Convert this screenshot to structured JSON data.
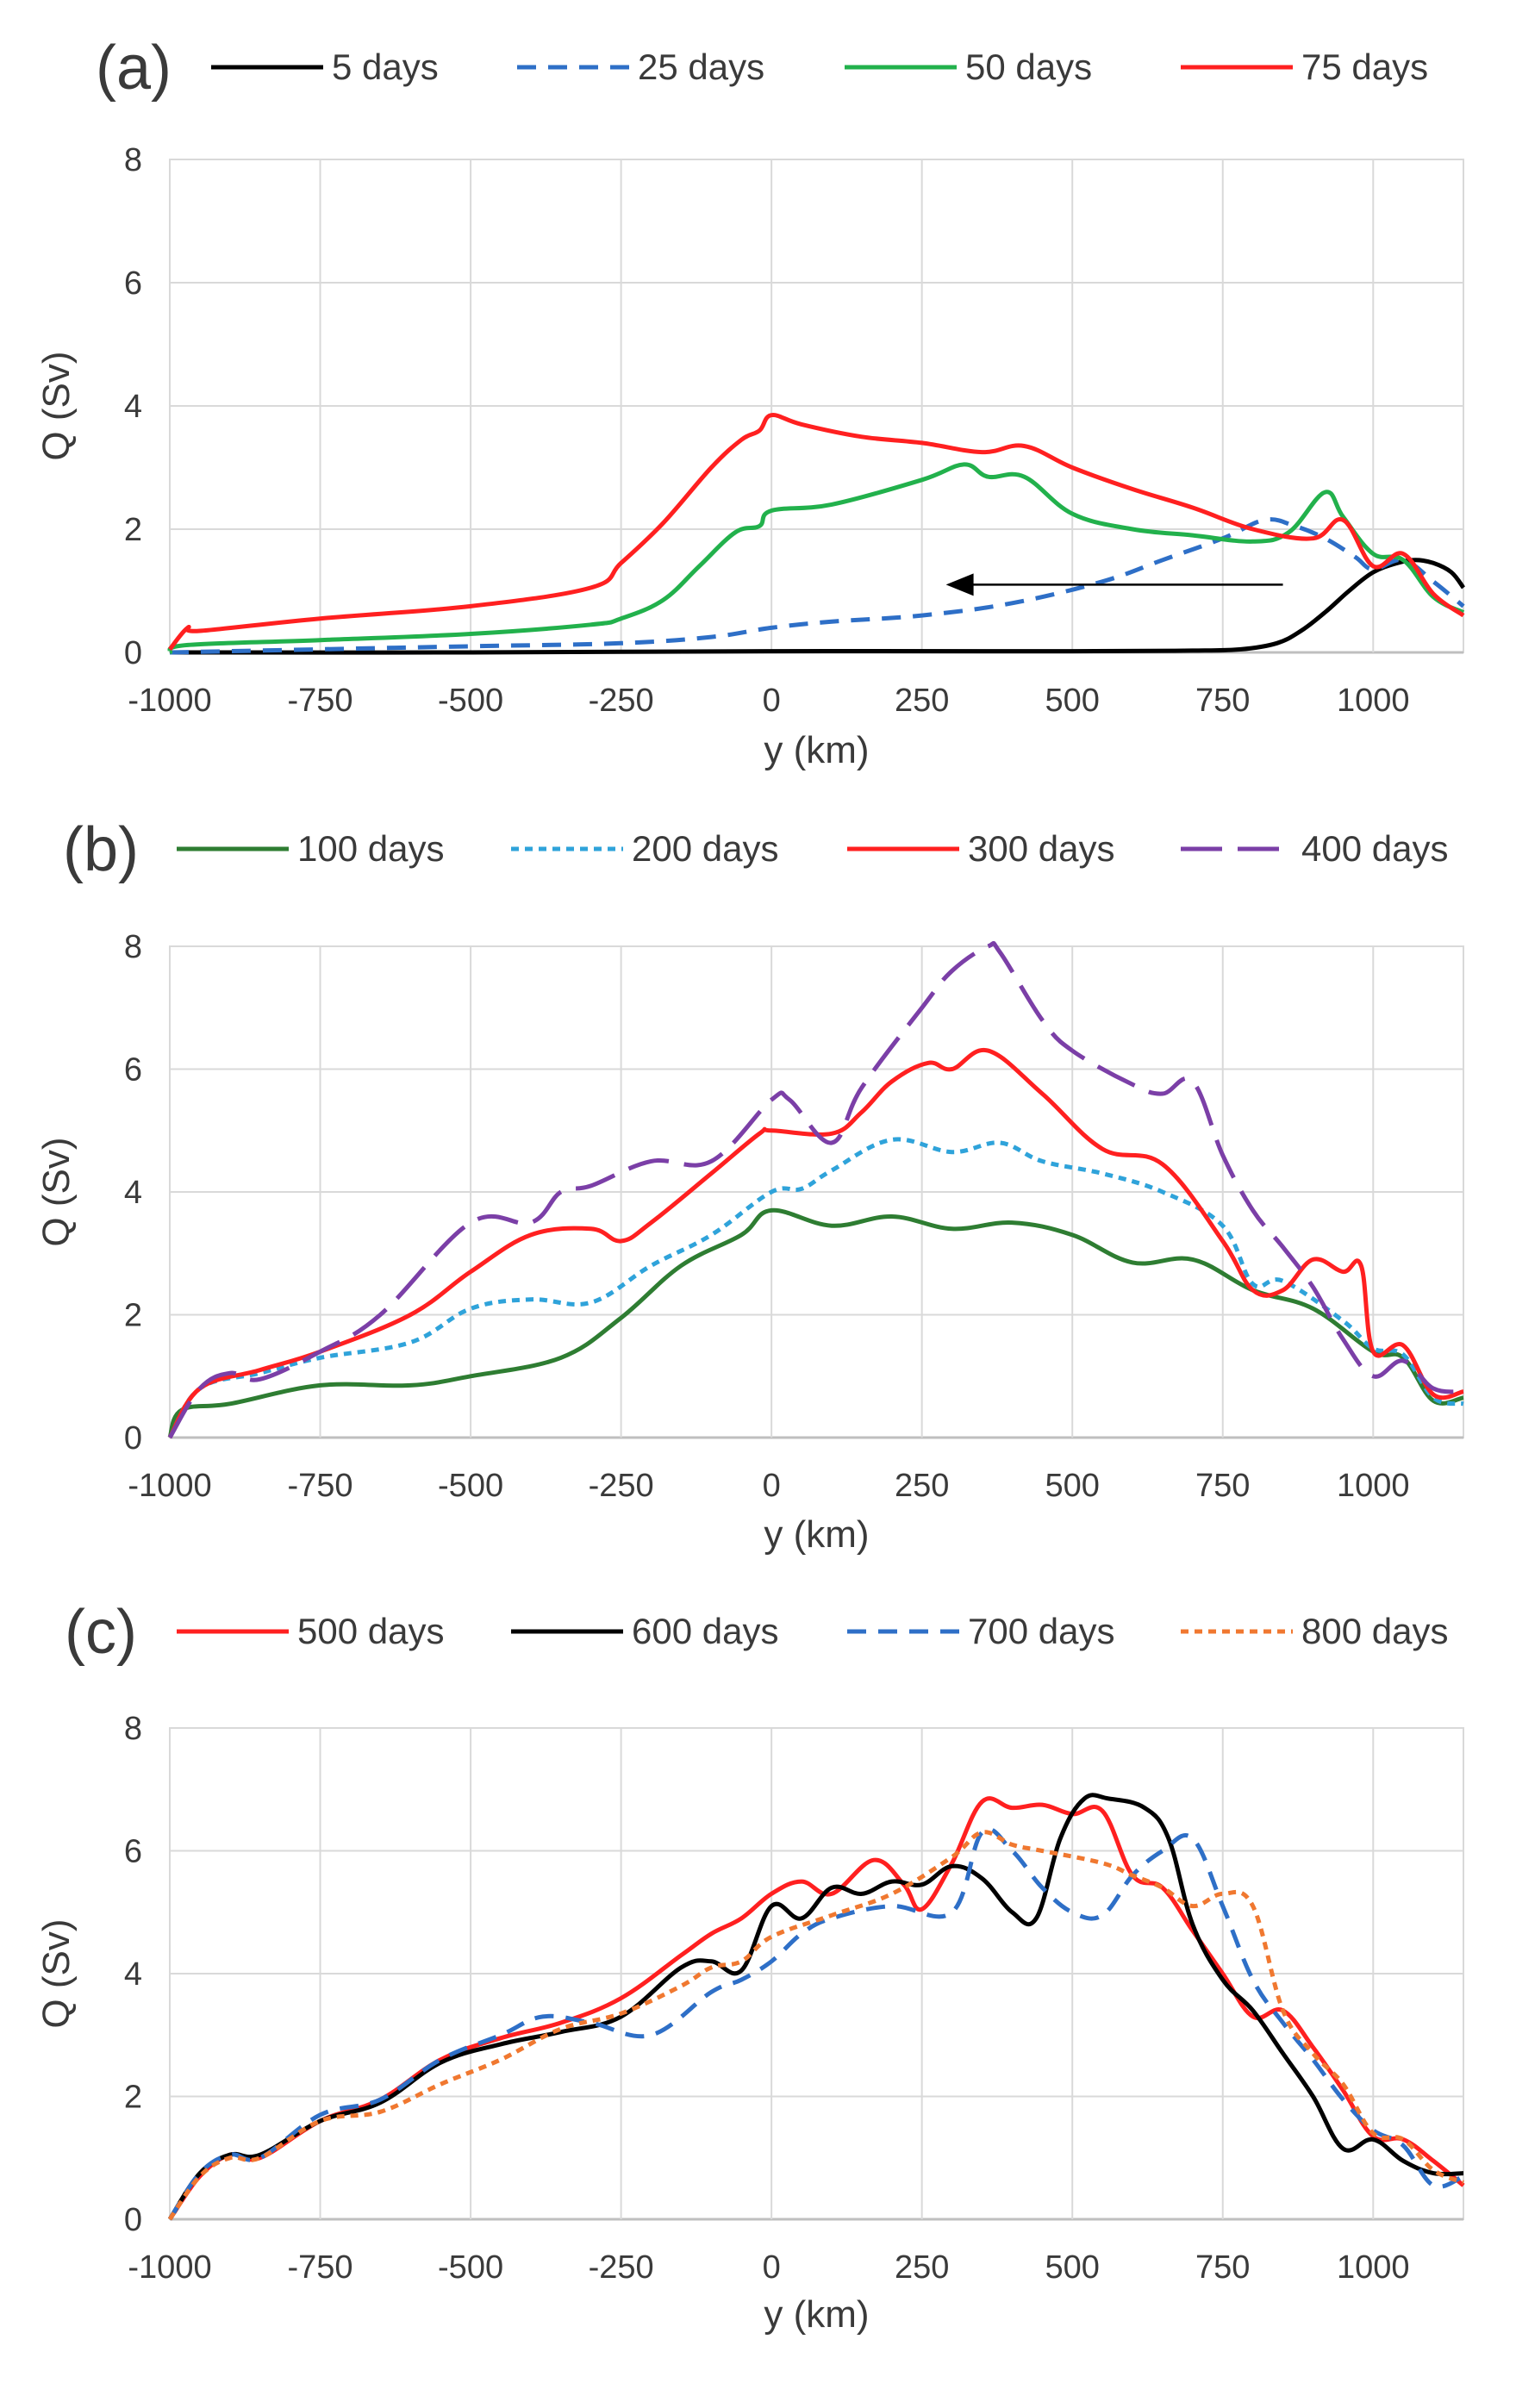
{
  "panels": [
    {
      "label": "(a)",
      "legend": [
        {
          "name": "5 days",
          "color": "#000000",
          "dash": "solid"
        },
        {
          "name": "25 days",
          "color": "#2E6FC7",
          "dash": "dashed"
        },
        {
          "name": "50 days",
          "color": "#22B14C",
          "dash": "solid"
        },
        {
          "name": "75 days",
          "color": "#FF2020",
          "dash": "solid"
        }
      ]
    },
    {
      "label": "(b)",
      "legend": [
        {
          "name": "100 days",
          "color": "#2E7D32",
          "dash": "solid"
        },
        {
          "name": "200 days",
          "color": "#2FA3DA",
          "dash": "dotted"
        },
        {
          "name": "300 days",
          "color": "#FF2020",
          "dash": "solid"
        },
        {
          "name": "400 days",
          "color": "#7B3FA7",
          "dash": "longdash"
        }
      ]
    },
    {
      "label": "(c)",
      "legend": [
        {
          "name": "500 days",
          "color": "#FF2020",
          "dash": "solid"
        },
        {
          "name": "600 days",
          "color": "#000000",
          "dash": "solid"
        },
        {
          "name": "700 days",
          "color": "#2E6FC7",
          "dash": "dashed"
        },
        {
          "name": "800 days",
          "color": "#F07830",
          "dash": "dotted"
        }
      ]
    }
  ],
  "chart_data": [
    {
      "type": "line",
      "panel": "(a)",
      "xlabel": "y (km)",
      "ylabel": "Q (Sv)",
      "xlim": [
        -1000,
        1150
      ],
      "ylim": [
        0,
        8
      ],
      "xticks": [
        -1000,
        -750,
        -500,
        -250,
        0,
        250,
        500,
        750,
        1000
      ],
      "yticks": [
        0,
        2,
        4,
        6,
        8
      ],
      "grid": true,
      "legend_position": "top",
      "annotation": "arrow pointing left from y≈850 km to y≈290 km at Q≈1.1",
      "arrow": {
        "x_from": 850,
        "x_to": 290,
        "y": 1.1
      },
      "series": [
        {
          "name": "5 days",
          "color": "#000000",
          "dash": "solid",
          "x": [
            -1000,
            -500,
            0,
            500,
            700,
            780,
            840,
            880,
            920,
            960,
            1000,
            1040,
            1070,
            1100,
            1130,
            1150
          ],
          "y": [
            0.0,
            0.0,
            0.02,
            0.02,
            0.03,
            0.05,
            0.15,
            0.35,
            0.65,
            1.0,
            1.3,
            1.45,
            1.5,
            1.45,
            1.3,
            1.05
          ]
        },
        {
          "name": "25 days",
          "color": "#2E6FC7",
          "dash": "dashed",
          "x": [
            -1000,
            -750,
            -500,
            -250,
            -100,
            0,
            100,
            250,
            400,
            550,
            650,
            750,
            820,
            870,
            920,
            970,
            1000,
            1050,
            1100,
            1150
          ],
          "y": [
            0.0,
            0.05,
            0.1,
            0.15,
            0.25,
            0.4,
            0.5,
            0.6,
            0.8,
            1.15,
            1.5,
            1.85,
            2.15,
            2.05,
            1.85,
            1.55,
            1.35,
            1.5,
            1.15,
            0.75
          ]
        },
        {
          "name": "50 days",
          "color": "#22B14C",
          "dash": "solid",
          "x": [
            -1000,
            -970,
            -750,
            -500,
            -300,
            -250,
            -180,
            -120,
            -60,
            -20,
            0,
            100,
            250,
            320,
            360,
            420,
            500,
            600,
            700,
            800,
            860,
            920,
            950,
            1000,
            1050,
            1100,
            1150
          ],
          "y": [
            0.0,
            0.12,
            0.2,
            0.3,
            0.45,
            0.55,
            0.85,
            1.4,
            1.95,
            2.05,
            2.3,
            2.4,
            2.8,
            3.05,
            2.85,
            2.85,
            2.25,
            2.0,
            1.9,
            1.8,
            1.95,
            2.6,
            2.2,
            1.6,
            1.5,
            0.9,
            0.65
          ]
        },
        {
          "name": "75 days",
          "color": "#FF2020",
          "dash": "solid",
          "x": [
            -1000,
            -970,
            -950,
            -750,
            -500,
            -300,
            -250,
            -180,
            -100,
            -50,
            -20,
            0,
            50,
            150,
            250,
            350,
            420,
            500,
            600,
            700,
            800,
            900,
            950,
            1000,
            1050,
            1100,
            1150
          ],
          "y": [
            0.05,
            0.4,
            0.35,
            0.55,
            0.75,
            1.05,
            1.45,
            2.1,
            3.0,
            3.45,
            3.6,
            3.85,
            3.7,
            3.5,
            3.4,
            3.25,
            3.35,
            3.0,
            2.65,
            2.35,
            2.0,
            1.85,
            2.15,
            1.4,
            1.6,
            0.95,
            0.6
          ]
        }
      ]
    },
    {
      "type": "line",
      "panel": "(b)",
      "xlabel": "y (km)",
      "ylabel": "Q (Sv)",
      "xlim": [
        -1000,
        1150
      ],
      "ylim": [
        0,
        8
      ],
      "xticks": [
        -1000,
        -750,
        -500,
        -250,
        0,
        250,
        500,
        750,
        1000
      ],
      "yticks": [
        0,
        2,
        4,
        6,
        8
      ],
      "grid": true,
      "legend_position": "top",
      "series": [
        {
          "name": "100 days",
          "color": "#2E7D32",
          "dash": "solid",
          "x": [
            -1000,
            -980,
            -900,
            -750,
            -600,
            -500,
            -350,
            -250,
            -150,
            -50,
            0,
            100,
            200,
            300,
            400,
            500,
            600,
            700,
            800,
            900,
            1000,
            1050,
            1100,
            1150
          ],
          "y": [
            0.0,
            0.45,
            0.55,
            0.85,
            0.85,
            1.0,
            1.3,
            1.95,
            2.8,
            3.3,
            3.7,
            3.45,
            3.6,
            3.4,
            3.5,
            3.3,
            2.85,
            2.9,
            2.4,
            2.1,
            1.4,
            1.3,
            0.6,
            0.65
          ]
        },
        {
          "name": "200 days",
          "color": "#2FA3DA",
          "dash": "dotted",
          "x": [
            -1000,
            -950,
            -850,
            -750,
            -600,
            -500,
            -400,
            -300,
            -200,
            -100,
            0,
            50,
            100,
            200,
            300,
            380,
            450,
            550,
            650,
            750,
            800,
            850,
            950,
            1000,
            1050,
            1100,
            1150
          ],
          "y": [
            0.0,
            0.8,
            1.05,
            1.3,
            1.55,
            2.1,
            2.25,
            2.2,
            2.8,
            3.3,
            4.0,
            4.05,
            4.35,
            4.85,
            4.65,
            4.8,
            4.5,
            4.3,
            4.0,
            3.45,
            2.5,
            2.55,
            1.9,
            1.45,
            1.35,
            0.65,
            0.55
          ]
        },
        {
          "name": "300 days",
          "color": "#FF2020",
          "dash": "solid",
          "x": [
            -1000,
            -950,
            -850,
            -750,
            -600,
            -500,
            -400,
            -300,
            -250,
            -200,
            -100,
            -20,
            0,
            100,
            150,
            200,
            260,
            300,
            360,
            450,
            550,
            650,
            750,
            800,
            850,
            900,
            950,
            980,
            1000,
            1050,
            1100,
            1150
          ],
          "y": [
            0.0,
            0.8,
            1.1,
            1.4,
            2.0,
            2.7,
            3.3,
            3.4,
            3.2,
            3.5,
            4.3,
            4.95,
            5.0,
            4.95,
            5.3,
            5.8,
            6.1,
            6.0,
            6.3,
            5.6,
            4.7,
            4.45,
            3.2,
            2.4,
            2.4,
            2.9,
            2.7,
            2.8,
            1.4,
            1.5,
            0.7,
            0.75
          ]
        },
        {
          "name": "400 days",
          "color": "#7B3FA7",
          "dash": "longdash",
          "x": [
            -1000,
            -950,
            -900,
            -850,
            -750,
            -650,
            -500,
            -400,
            -350,
            -300,
            -200,
            -100,
            0,
            30,
            100,
            150,
            250,
            300,
            360,
            380,
            450,
            500,
            600,
            650,
            700,
            750,
            800,
            850,
            900,
            950,
            1000,
            1050,
            1100,
            1150
          ],
          "y": [
            0.0,
            0.8,
            1.05,
            0.95,
            1.4,
            2.0,
            3.5,
            3.5,
            4.0,
            4.1,
            4.5,
            4.5,
            5.5,
            5.5,
            4.8,
            5.7,
            7.0,
            7.6,
            8.0,
            7.9,
            6.8,
            6.3,
            5.75,
            5.6,
            5.8,
            4.6,
            3.7,
            3.1,
            2.45,
            1.6,
            1.0,
            1.25,
            0.8,
            0.75
          ]
        }
      ]
    },
    {
      "type": "line",
      "panel": "(c)",
      "xlabel": "y (km)",
      "ylabel": "Q (Sv)",
      "xlim": [
        -1000,
        1150
      ],
      "ylim": [
        0,
        8
      ],
      "xticks": [
        -1000,
        -750,
        -500,
        -250,
        0,
        250,
        500,
        750,
        1000
      ],
      "yticks": [
        0,
        2,
        4,
        6,
        8
      ],
      "grid": true,
      "legend_position": "top",
      "series": [
        {
          "name": "500 days",
          "color": "#FF2020",
          "dash": "solid",
          "x": [
            -1000,
            -950,
            -900,
            -850,
            -750,
            -650,
            -550,
            -450,
            -350,
            -250,
            -150,
            -100,
            -50,
            0,
            50,
            100,
            170,
            220,
            250,
            300,
            350,
            400,
            450,
            500,
            550,
            600,
            650,
            700,
            750,
            800,
            850,
            900,
            950,
            1000,
            1050,
            1100,
            1150
          ],
          "y": [
            0.0,
            0.7,
            1.05,
            1.0,
            1.6,
            1.95,
            2.6,
            2.95,
            3.2,
            3.6,
            4.3,
            4.65,
            4.9,
            5.3,
            5.5,
            5.3,
            5.85,
            5.45,
            5.05,
            5.8,
            6.8,
            6.7,
            6.75,
            6.6,
            6.65,
            5.6,
            5.4,
            4.7,
            4.0,
            3.3,
            3.4,
            2.8,
            2.1,
            1.35,
            1.3,
            0.95,
            0.55
          ]
        },
        {
          "name": "600 days",
          "color": "#000000",
          "dash": "solid",
          "x": [
            -1000,
            -950,
            -900,
            -850,
            -750,
            -650,
            -550,
            -450,
            -350,
            -250,
            -150,
            -100,
            -50,
            0,
            50,
            100,
            150,
            200,
            250,
            300,
            350,
            400,
            440,
            480,
            520,
            560,
            620,
            660,
            700,
            750,
            800,
            850,
            900,
            950,
            1000,
            1050,
            1100,
            1150
          ],
          "y": [
            0.0,
            0.75,
            1.05,
            1.05,
            1.6,
            1.9,
            2.55,
            2.85,
            3.05,
            3.3,
            4.1,
            4.2,
            4.05,
            5.1,
            4.9,
            5.4,
            5.3,
            5.5,
            5.45,
            5.75,
            5.55,
            5.0,
            4.9,
            6.2,
            6.85,
            6.85,
            6.7,
            6.2,
            4.8,
            3.9,
            3.4,
            2.7,
            2.0,
            1.15,
            1.3,
            0.95,
            0.75,
            0.75
          ]
        },
        {
          "name": "700 days",
          "color": "#2E6FC7",
          "dash": "dashed",
          "x": [
            -1000,
            -950,
            -900,
            -850,
            -750,
            -650,
            -550,
            -450,
            -380,
            -300,
            -200,
            -100,
            -50,
            0,
            50,
            100,
            200,
            300,
            350,
            400,
            450,
            500,
            550,
            600,
            650,
            700,
            750,
            800,
            850,
            900,
            950,
            1000,
            1050,
            1100,
            1150
          ],
          "y": [
            0.0,
            0.75,
            1.05,
            1.0,
            1.7,
            1.95,
            2.6,
            3.0,
            3.3,
            3.2,
            3.0,
            3.7,
            3.9,
            4.2,
            4.65,
            4.9,
            5.1,
            5.0,
            6.3,
            6.0,
            5.4,
            5.0,
            4.95,
            5.6,
            6.0,
            6.2,
            5.1,
            3.9,
            3.2,
            2.6,
            1.95,
            1.45,
            1.2,
            0.55,
            0.7
          ]
        },
        {
          "name": "800 days",
          "color": "#F07830",
          "dash": "dotted",
          "x": [
            -1000,
            -950,
            -900,
            -850,
            -750,
            -650,
            -550,
            -450,
            -350,
            -250,
            -150,
            -100,
            -50,
            0,
            100,
            200,
            300,
            350,
            400,
            450,
            550,
            600,
            650,
            700,
            750,
            800,
            850,
            900,
            950,
            1000,
            1050,
            1100,
            1150
          ],
          "y": [
            0.0,
            0.7,
            1.0,
            1.0,
            1.6,
            1.75,
            2.2,
            2.6,
            3.1,
            3.35,
            3.8,
            4.1,
            4.2,
            4.6,
            4.95,
            5.3,
            5.9,
            6.3,
            6.1,
            6.0,
            5.8,
            5.6,
            5.4,
            5.1,
            5.3,
            5.1,
            3.4,
            2.7,
            2.2,
            1.4,
            1.3,
            0.8,
            0.6
          ]
        }
      ]
    }
  ]
}
